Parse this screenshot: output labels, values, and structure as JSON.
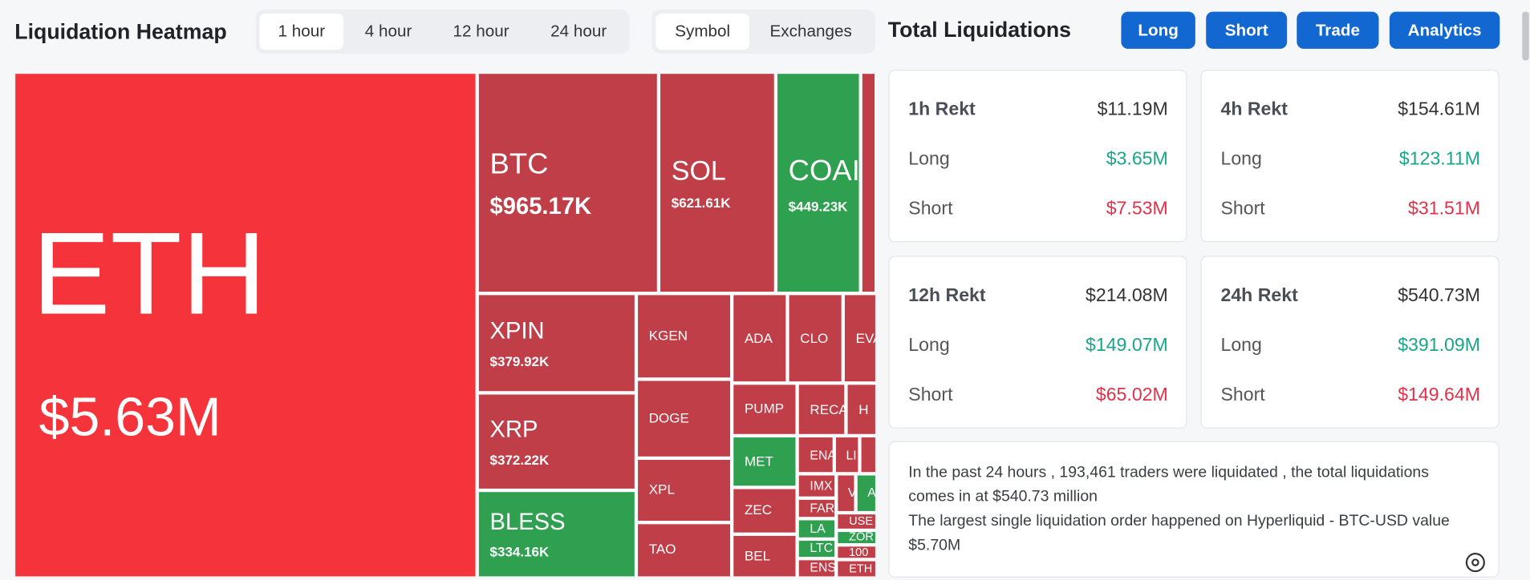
{
  "header": {
    "title": "Liquidation Heatmap",
    "time_tabs": [
      "1 hour",
      "4 hour",
      "12 hour",
      "24 hour"
    ],
    "view_tabs": [
      "Symbol",
      "Exchanges"
    ]
  },
  "panel": {
    "title": "Total Liquidations",
    "buttons": [
      "Long",
      "Short",
      "Trade",
      "Analytics"
    ]
  },
  "heatmap": {
    "tiles": [
      {
        "symbol": "ETH",
        "value": "$5.63M"
      },
      {
        "symbol": "BTC",
        "value": "$965.17K"
      },
      {
        "symbol": "SOL",
        "value": "$621.61K"
      },
      {
        "symbol": "COAI",
        "value": "$449.23K"
      },
      {
        "symbol": "XPIN",
        "value": "$379.92K"
      },
      {
        "symbol": "XRP",
        "value": "$372.22K"
      },
      {
        "symbol": "BLESS",
        "value": "$334.16K"
      },
      {
        "symbol": "KGEN"
      },
      {
        "symbol": "DOGE"
      },
      {
        "symbol": "XPL"
      },
      {
        "symbol": "TAO"
      },
      {
        "symbol": "ADA"
      },
      {
        "symbol": "CLO"
      },
      {
        "symbol": "EVA"
      },
      {
        "symbol": "PUMP"
      },
      {
        "symbol": "RECA"
      },
      {
        "symbol": "H"
      },
      {
        "symbol": "MET"
      },
      {
        "symbol": "ZEC"
      },
      {
        "symbol": "BEL"
      },
      {
        "symbol": "ENA"
      },
      {
        "symbol": "LI"
      },
      {
        "symbol": "IMX"
      },
      {
        "symbol": "V"
      },
      {
        "symbol": "A"
      },
      {
        "symbol": "FAR"
      },
      {
        "symbol": "LA"
      },
      {
        "symbol": "USE"
      },
      {
        "symbol": "ZOR"
      },
      {
        "symbol": "LTC"
      },
      {
        "symbol": "100"
      },
      {
        "symbol": "ENS"
      },
      {
        "symbol": "ETH"
      }
    ]
  },
  "cards": [
    {
      "title": "1h Rekt",
      "total": "$11.19M",
      "rows": [
        {
          "label": "Long",
          "value": "$3.65M"
        },
        {
          "label": "Short",
          "value": "$7.53M"
        }
      ]
    },
    {
      "title": "4h Rekt",
      "total": "$154.61M",
      "rows": [
        {
          "label": "Long",
          "value": "$123.11M"
        },
        {
          "label": "Short",
          "value": "$31.51M"
        }
      ]
    },
    {
      "title": "12h Rekt",
      "total": "$214.08M",
      "rows": [
        {
          "label": "Long",
          "value": "$149.07M"
        },
        {
          "label": "Short",
          "value": "$65.02M"
        }
      ]
    },
    {
      "title": "24h Rekt",
      "total": "$540.73M",
      "rows": [
        {
          "label": "Long",
          "value": "$391.09M"
        },
        {
          "label": "Short",
          "value": "$149.64M"
        }
      ]
    }
  ],
  "summary": {
    "lines": [
      "In the past 24 hours , 193,461 traders were liquidated , the total liquidations",
      "comes in at $540.73 million",
      "The largest single liquidation order happened on Hyperliquid - BTC-USD value",
      "$5.70M"
    ]
  }
}
